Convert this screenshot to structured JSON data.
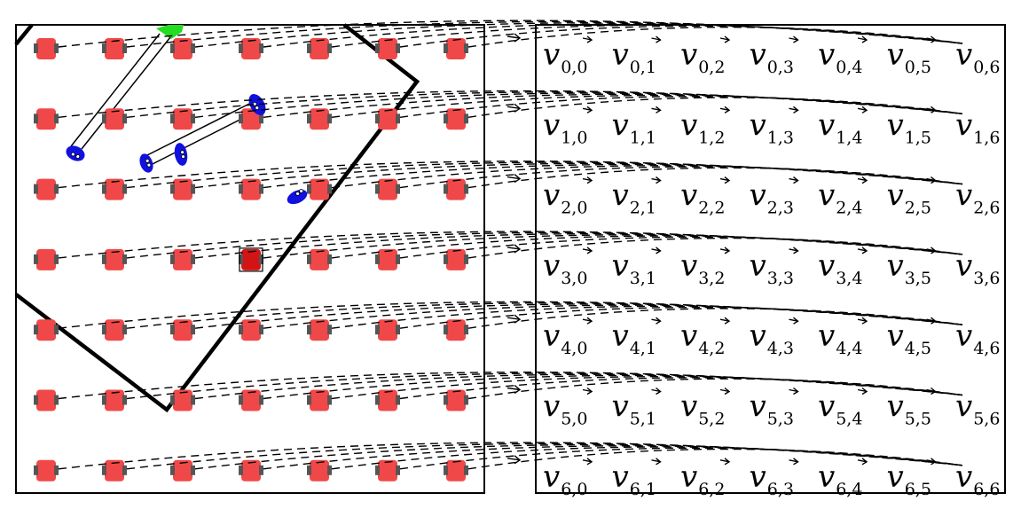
{
  "grid": {
    "rows": 7,
    "cols": 7,
    "symbol": "v",
    "highlight_cell": [
      3,
      3
    ]
  },
  "labels": [
    [
      "0,0",
      "0,1",
      "0,2",
      "0,3",
      "0,4",
      "0,5",
      "0,6"
    ],
    [
      "1,0",
      "1,1",
      "1,2",
      "1,3",
      "1,4",
      "1,5",
      "1,6"
    ],
    [
      "2,0",
      "2,1",
      "2,2",
      "2,3",
      "2,4",
      "2,5",
      "2,6"
    ],
    [
      "3,0",
      "3,1",
      "3,2",
      "3,3",
      "3,4",
      "3,5",
      "3,6"
    ],
    [
      "4,0",
      "4,1",
      "4,2",
      "4,3",
      "4,4",
      "4,5",
      "4,6"
    ],
    [
      "5,0",
      "5,1",
      "5,2",
      "5,3",
      "5,4",
      "5,5",
      "5,6"
    ],
    [
      "6,0",
      "6,1",
      "6,2",
      "6,3",
      "6,4",
      "6,5",
      "6,6"
    ]
  ],
  "colors": {
    "robot": "#f04848",
    "robot_highlight": "#d41414",
    "wheel": "#555555",
    "person": "#1010e0",
    "goal": "#22dd22",
    "outline": "#000000"
  }
}
